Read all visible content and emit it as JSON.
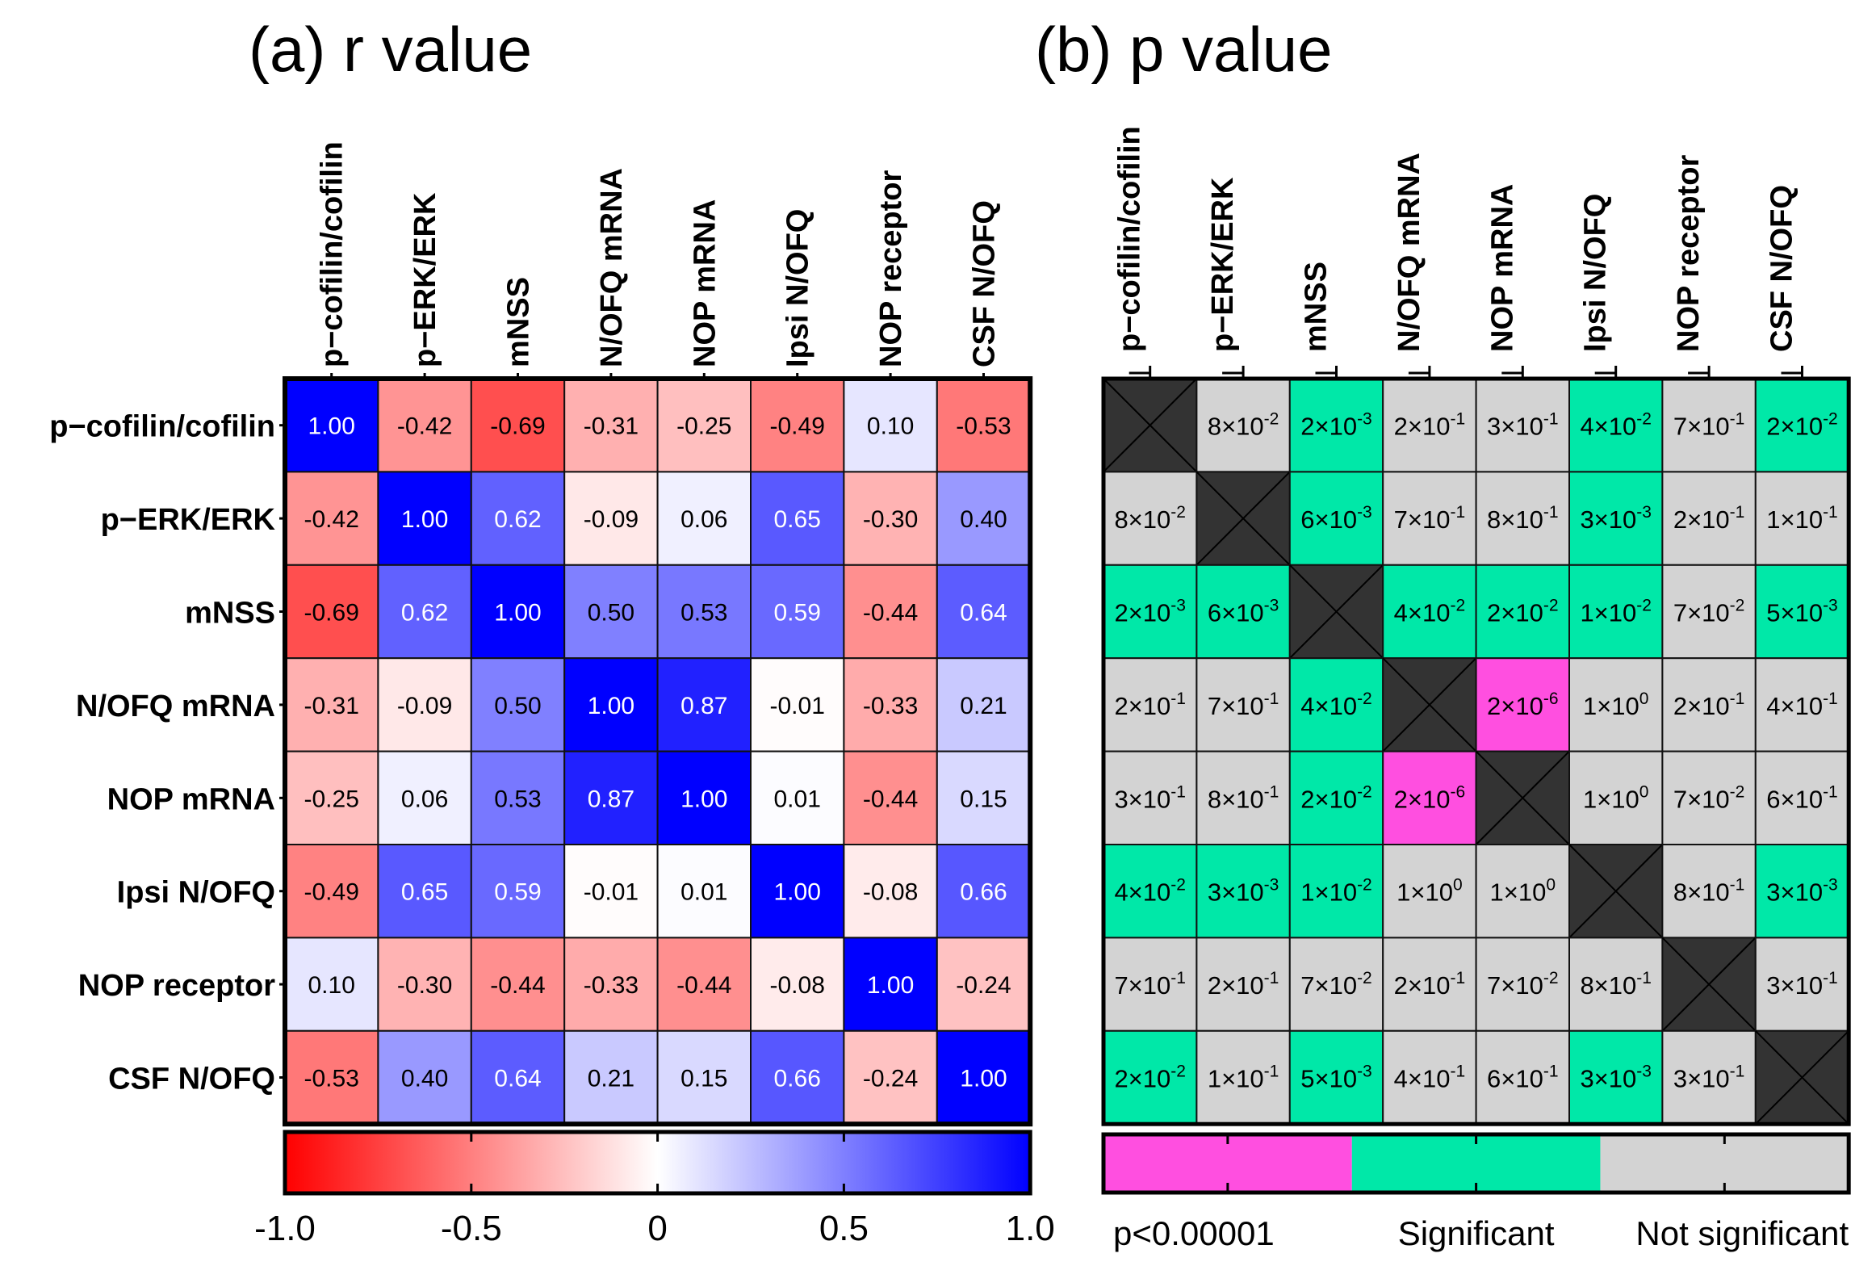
{
  "chart_data": [
    {
      "type": "heatmap",
      "title": "(a) r value",
      "variables": [
        "p−cofilin/cofilin",
        "p−ERK/ERK",
        "mNSS",
        "N/OFQ mRNA",
        "NOP mRNA",
        "Ipsi N/OFQ",
        "NOP receptor",
        "CSF N/OFQ"
      ],
      "values": [
        [
          "1.00",
          "-0.42",
          "-0.69",
          "-0.31",
          "-0.25",
          "-0.49",
          "0.10",
          "-0.53"
        ],
        [
          "-0.42",
          "1.00",
          "0.62",
          "-0.09",
          "0.06",
          "0.65",
          "-0.30",
          "0.40"
        ],
        [
          "-0.69",
          "0.62",
          "1.00",
          "0.50",
          "0.53",
          "0.59",
          "-0.44",
          "0.64"
        ],
        [
          "-0.31",
          "-0.09",
          "0.50",
          "1.00",
          "0.87",
          "-0.01",
          "-0.33",
          "0.21"
        ],
        [
          "-0.25",
          "0.06",
          "0.53",
          "0.87",
          "1.00",
          "0.01",
          "-0.44",
          "0.15"
        ],
        [
          "-0.49",
          "0.65",
          "0.59",
          "-0.01",
          "0.01",
          "1.00",
          "-0.08",
          "0.66"
        ],
        [
          "0.10",
          "-0.30",
          "-0.44",
          "-0.33",
          "-0.44",
          "-0.08",
          "1.00",
          "-0.24"
        ],
        [
          "-0.53",
          "0.40",
          "0.64",
          "0.21",
          "0.15",
          "0.66",
          "-0.24",
          "1.00"
        ]
      ],
      "colorbar": {
        "range": [
          -1.0,
          1.0
        ],
        "ticks": [
          "-1.0",
          "-0.5",
          "0",
          "0.5",
          "1.0"
        ],
        "colors": {
          "low": "#ff0000",
          "mid": "#ffffff",
          "high": "#0000ff"
        }
      }
    },
    {
      "type": "heatmap",
      "title": "(b) p value",
      "variables": [
        "p−cofilin/cofilin",
        "p−ERK/ERK",
        "mNSS",
        "N/OFQ mRNA",
        "NOP mRNA",
        "Ipsi N/OFQ",
        "NOP receptor",
        "CSF N/OFQ"
      ],
      "cells": [
        [
          "",
          "8×10^-2",
          "2×10^-3",
          "2×10^-1",
          "3×10^-1",
          "4×10^-2",
          "7×10^-1",
          "2×10^-2"
        ],
        [
          "8×10^-2",
          "",
          "6×10^-3",
          "7×10^-1",
          "8×10^-1",
          "3×10^-3",
          "2×10^-1",
          "1×10^-1"
        ],
        [
          "2×10^-3",
          "6×10^-3",
          "",
          "4×10^-2",
          "2×10^-2",
          "1×10^-2",
          "7×10^-2",
          "5×10^-3"
        ],
        [
          "2×10^-1",
          "7×10^-1",
          "4×10^-2",
          "",
          "2×10^-6",
          "1×10^0",
          "2×10^-1",
          "4×10^-1"
        ],
        [
          "3×10^-1",
          "8×10^-1",
          "2×10^-2",
          "2×10^-6",
          "",
          "1×10^0",
          "7×10^-2",
          "6×10^-1"
        ],
        [
          "4×10^-2",
          "3×10^-3",
          "1×10^-2",
          "1×10^0",
          "1×10^0",
          "",
          "8×10^-1",
          "3×10^-3"
        ],
        [
          "7×10^-1",
          "2×10^-1",
          "7×10^-2",
          "2×10^-1",
          "7×10^-2",
          "8×10^-1",
          "",
          "3×10^-1"
        ],
        [
          "2×10^-2",
          "1×10^-1",
          "5×10^-3",
          "4×10^-1",
          "6×10^-1",
          "3×10^-3",
          "3×10^-1",
          ""
        ]
      ],
      "categories_grid": [
        [
          "d",
          "n",
          "s",
          "n",
          "n",
          "s",
          "n",
          "s"
        ],
        [
          "n",
          "d",
          "s",
          "n",
          "n",
          "s",
          "n",
          "n"
        ],
        [
          "s",
          "s",
          "d",
          "s",
          "s",
          "s",
          "n",
          "s"
        ],
        [
          "n",
          "n",
          "s",
          "d",
          "h",
          "n",
          "n",
          "n"
        ],
        [
          "n",
          "n",
          "s",
          "h",
          "d",
          "n",
          "n",
          "n"
        ],
        [
          "s",
          "s",
          "s",
          "n",
          "n",
          "d",
          "n",
          "s"
        ],
        [
          "n",
          "n",
          "n",
          "n",
          "n",
          "n",
          "d",
          "n"
        ],
        [
          "s",
          "n",
          "s",
          "n",
          "n",
          "s",
          "n",
          "d"
        ]
      ],
      "legend": [
        {
          "key": "h",
          "label": "p<0.00001",
          "color": "#ff4fe0"
        },
        {
          "key": "s",
          "label": "Significant",
          "color": "#00e8a8"
        },
        {
          "key": "n",
          "label": "Not significant",
          "color": "#d3d3d3"
        }
      ],
      "diagonal_color": "#333333"
    }
  ]
}
